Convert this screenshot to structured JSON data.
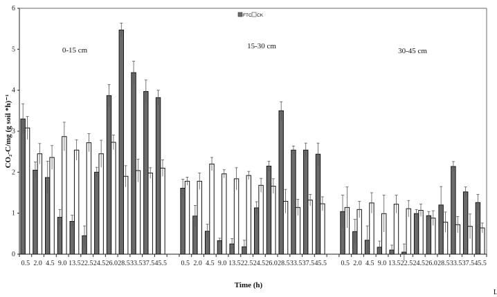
{
  "chart_data": {
    "type": "bar",
    "title": "",
    "xlabel": "Time (h)",
    "ylabel": "CO₂-C/mg (g soil *h)⁻¹",
    "ylim": [
      0,
      6
    ],
    "yticks": [
      0,
      1,
      2,
      3,
      4,
      5,
      6
    ],
    "grid": false,
    "legend": "top-center",
    "error_bars": true,
    "colors": {
      "FTC": "#6b6b6b",
      "CK": "#ffffff"
    },
    "categories": [
      "0.5",
      "2.0",
      "4.5",
      "9.0",
      "13.5",
      "22.5",
      "24.5",
      "26.0",
      "28.5",
      "33.5",
      "37.5",
      "45.5"
    ],
    "groups": [
      {
        "label": "0-15 cm",
        "series": [
          {
            "name": "FTC",
            "values": [
              3.3,
              2.05,
              1.87,
              0.9,
              0.8,
              0.45,
              2.0,
              3.87,
              5.47,
              4.43,
              3.97,
              3.82
            ],
            "errors": [
              0.37,
              0.2,
              0.4,
              0.19,
              0.15,
              0.24,
              0.12,
              0.27,
              0.17,
              0.28,
              0.28,
              0.18
            ]
          },
          {
            "name": "CK",
            "values": [
              3.08,
              2.45,
              2.36,
              2.87,
              2.54,
              2.72,
              2.45,
              2.73,
              1.9,
              2.04,
              1.98,
              2.1
            ],
            "errors": [
              0.28,
              0.25,
              0.29,
              0.35,
              0.25,
              0.22,
              0.33,
              0.18,
              0.26,
              0.28,
              0.13,
              0.2
            ]
          }
        ]
      },
      {
        "label": "15-30 cm",
        "series": [
          {
            "name": "FTC",
            "values": [
              1.61,
              0.93,
              0.56,
              0.33,
              0.25,
              0.18,
              1.13,
              2.15,
              3.5,
              2.54,
              2.54,
              2.44
            ],
            "errors": [
              0.22,
              0.26,
              0.17,
              0.06,
              0.13,
              0.16,
              0.15,
              0.12,
              0.22,
              0.1,
              0.17,
              0.27
            ]
          },
          {
            "name": "CK",
            "values": [
              1.78,
              1.78,
              2.2,
              1.96,
              1.84,
              1.92,
              1.68,
              1.66,
              1.29,
              1.14,
              1.32,
              1.23
            ],
            "errors": [
              0.1,
              0.2,
              0.16,
              0.1,
              0.27,
              0.1,
              0.17,
              0.18,
              0.29,
              0.2,
              0.14,
              0.17
            ]
          }
        ]
      },
      {
        "label": "30-45 cm",
        "series": [
          {
            "name": "FTC",
            "values": [
              1.04,
              0.55,
              0.34,
              0.17,
              0.1,
              0.05,
              0.99,
              0.94,
              1.2,
              2.14,
              1.52,
              1.26
            ],
            "errors": [
              0.4,
              0.3,
              0.35,
              0.15,
              0.12,
              0.2,
              0.1,
              0.1,
              0.45,
              0.12,
              0.12,
              0.2
            ]
          },
          {
            "name": "CK",
            "values": [
              1.14,
              1.09,
              1.25,
              0.99,
              1.22,
              1.11,
              1.07,
              0.88,
              0.78,
              0.72,
              0.68,
              0.64
            ],
            "errors": [
              0.5,
              0.2,
              0.25,
              0.45,
              0.22,
              0.2,
              0.15,
              0.18,
              0.25,
              0.2,
              0.3,
              0.12
            ]
          }
        ]
      }
    ]
  },
  "corner_mark": "L"
}
